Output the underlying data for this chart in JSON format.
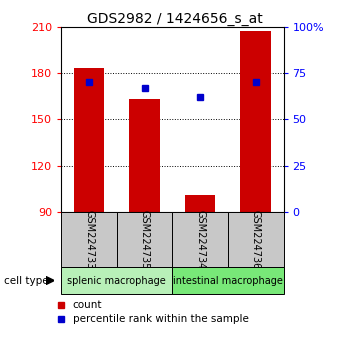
{
  "title": "GDS2982 / 1424656_s_at",
  "samples": [
    "GSM224733",
    "GSM224735",
    "GSM224734",
    "GSM224736"
  ],
  "counts": [
    183,
    163,
    101,
    207
  ],
  "percentiles": [
    70,
    67,
    62,
    70
  ],
  "ylim_left": [
    90,
    210
  ],
  "ylim_right": [
    0,
    100
  ],
  "yticks_left": [
    90,
    120,
    150,
    180,
    210
  ],
  "yticks_right": [
    0,
    25,
    50,
    75,
    100
  ],
  "ytick_labels_right": [
    "0",
    "25",
    "50",
    "75",
    "100%"
  ],
  "grid_lines": [
    120,
    150,
    180
  ],
  "groups": [
    {
      "label": "splenic macrophage",
      "samples": [
        0,
        1
      ],
      "color": "#b8f0b8"
    },
    {
      "label": "intestinal macrophage",
      "samples": [
        2,
        3
      ],
      "color": "#78e878"
    }
  ],
  "bar_color": "#cc0000",
  "dot_color": "#0000cc",
  "bar_width": 0.55,
  "sample_box_color": "#c8c8c8",
  "legend_count_label": "count",
  "legend_pct_label": "percentile rank within the sample",
  "cell_type_label": "cell type",
  "title_fontsize": 10,
  "tick_fontsize": 8,
  "sample_fontsize": 7,
  "group_fontsize": 7,
  "legend_fontsize": 7.5
}
